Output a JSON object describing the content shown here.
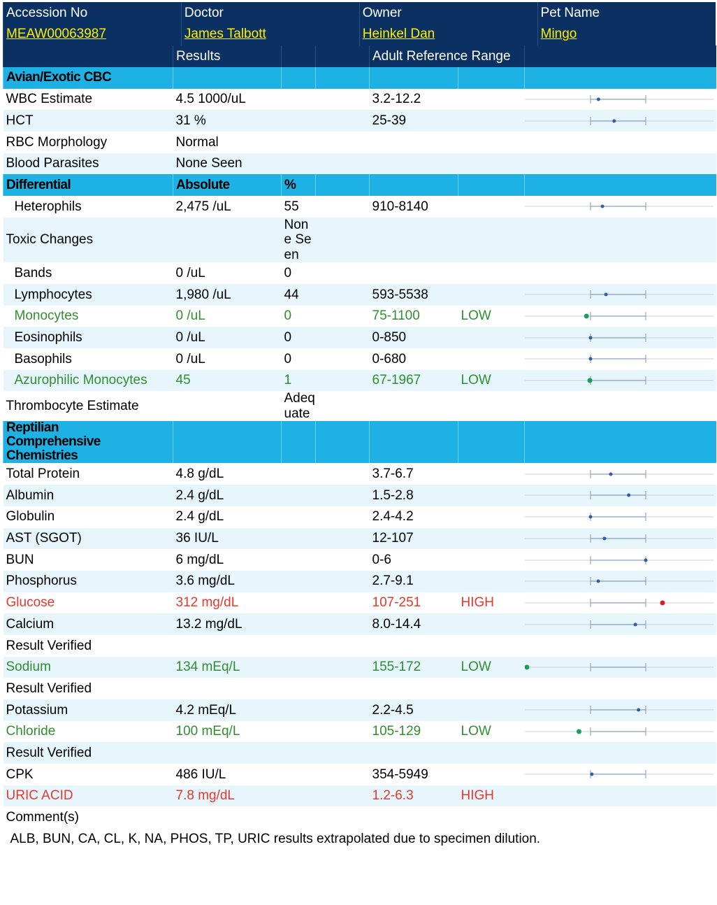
{
  "header": {
    "columns": [
      {
        "label": "Accession No",
        "value": "MEAW00063987"
      },
      {
        "label": "Doctor",
        "value": "James Talbott"
      },
      {
        "label": "Owner",
        "value": "Heinkel Dan"
      },
      {
        "label": "Pet Name",
        "value": "Mingo"
      }
    ]
  },
  "table": {
    "headings": [
      "Results",
      "Adult Reference Range"
    ],
    "rows": [
      {
        "kind": "section",
        "name": "Avian/Exotic CBC"
      },
      {
        "name": "WBC Estimate",
        "result": "4.5 1000/uL",
        "range": "3.2-12.2",
        "indicator": true
      },
      {
        "name": "HCT",
        "result": "31 %",
        "range": "25-39",
        "indicator": true
      },
      {
        "name": "RBC Morphology",
        "result": "Normal"
      },
      {
        "name": "Blood Parasites",
        "result": "None Seen"
      },
      {
        "kind": "section",
        "name": "Differential",
        "result": "Absolute",
        "percent": "%"
      },
      {
        "name": "Heterophils",
        "indent": true,
        "result": "2,475 /uL",
        "percent": "55",
        "range": "910-8140",
        "indicator": true
      },
      {
        "name": "Toxic Changes",
        "percent": "None Seen"
      },
      {
        "name": "Bands",
        "indent": true,
        "result": "0 /uL",
        "percent": "0"
      },
      {
        "name": "Lymphocytes",
        "indent": true,
        "result": "1,980 /uL",
        "percent": "44",
        "range": "593-5538",
        "indicator": true
      },
      {
        "name": "Monocytes",
        "indent": true,
        "result": "0 /uL",
        "percent": "0",
        "range": "75-1100",
        "flag": "LOW",
        "indicator": true
      },
      {
        "name": "Eosinophils",
        "indent": true,
        "result": "0 /uL",
        "percent": "0",
        "range": "0-850",
        "indicator": true
      },
      {
        "name": "Basophils",
        "indent": true,
        "result": "0 /uL",
        "percent": "0",
        "range": "0-680",
        "indicator": true
      },
      {
        "name": "Azurophilic Monocytes",
        "indent": true,
        "result": "45",
        "percent": "1",
        "range": "67-1967",
        "flag": "LOW",
        "indicator": true
      },
      {
        "name": "Thrombocyte Estimate",
        "percent": "Adequate"
      },
      {
        "kind": "section",
        "name": "Reptilian Comprehensive Chemistries"
      },
      {
        "name": "Total Protein",
        "result": "4.8 g/dL",
        "range": "3.7-6.7",
        "indicator": true
      },
      {
        "name": "Albumin",
        "result": "2.4 g/dL",
        "range": "1.5-2.8",
        "indicator": true
      },
      {
        "name": "Globulin",
        "result": "2.4 g/dL",
        "range": "2.4-4.2",
        "indicator": true
      },
      {
        "name": "AST (SGOT)",
        "result": "36 IU/L",
        "range": "12-107",
        "indicator": true
      },
      {
        "name": "BUN",
        "result": "6 mg/dL",
        "range": "0-6",
        "indicator": true
      },
      {
        "name": "Phosphorus",
        "result": "3.6 mg/dL",
        "range": "2.7-9.1",
        "indicator": true
      },
      {
        "name": "Glucose",
        "result": "312 mg/dL",
        "range": "107-251",
        "flag": "HIGH",
        "indicator": true
      },
      {
        "name": "Calcium",
        "result": "13.2 mg/dL",
        "range": "8.0-14.4",
        "indicator": true
      },
      {
        "name": "Result Verified"
      },
      {
        "name": "Sodium",
        "result": "134 mEq/L",
        "range": "155-172",
        "flag": "LOW",
        "indicator": true
      },
      {
        "name": "Result Verified"
      },
      {
        "name": "Potassium",
        "result": "4.2 mEq/L",
        "range": "2.2-4.5",
        "indicator": true
      },
      {
        "name": "Chloride",
        "result": "100 mEq/L",
        "range": "105-129",
        "flag": "LOW",
        "indicator": true
      },
      {
        "name": "Result Verified"
      },
      {
        "name": "CPK",
        "result": "486 IU/L",
        "range": "354-5949",
        "indicator": true
      },
      {
        "name": "URIC ACID",
        "result": "7.8 mg/dL",
        "range": "1.2-6.3",
        "flag": "HIGH"
      },
      {
        "name": "Comment(s)"
      },
      {
        "kind": "comment",
        "name": "ALB, BUN, CA, CL, K, NA, PHOS, TP, URIC results extrapolated due to specimen dilution."
      }
    ]
  }
}
